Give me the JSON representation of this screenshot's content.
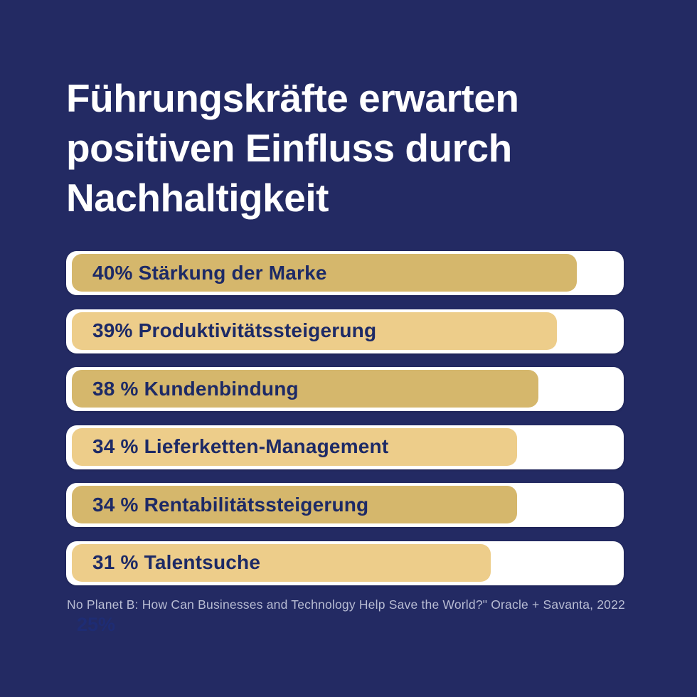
{
  "title": {
    "text": "Führungskräfte erwarten positiven Einfluss durch Nachhaltigkeit",
    "lines": [
      "Führungskräfte erwarten",
      "positiven Einfluss durch",
      "Nachhaltigkeit"
    ]
  },
  "chart_data": {
    "type": "bar",
    "orientation": "horizontal",
    "unit": "%",
    "title": "Führungskräfte erwarten positiven Einfluss durch Nachhaltigkeit",
    "categories": [
      "Stärkung der Marke",
      "Produktivitätssteigerung",
      "Kundenbindung",
      "Lieferketten-Management",
      "Rentabilitätssteigerung",
      "Talentsuche"
    ],
    "values": [
      40,
      39,
      38,
      34,
      34,
      31
    ],
    "rows": [
      {
        "label": "40% Stärkung der Marke",
        "value": 40,
        "fill_pct": 90.6,
        "shade": "dark"
      },
      {
        "label": "39% Produktivitätssteigerung",
        "value": 39,
        "fill_pct": 87.0,
        "shade": "light"
      },
      {
        "label": "38 % Kundenbindung",
        "value": 38,
        "fill_pct": 83.7,
        "shade": "dark"
      },
      {
        "label": "34 % Lieferketten-Management",
        "value": 34,
        "fill_pct": 79.8,
        "shade": "light"
      },
      {
        "label": "34 % Rentabilitätssteigerung",
        "value": 34,
        "fill_pct": 79.8,
        "shade": "dark"
      },
      {
        "label": "31 % Talentsuche",
        "value": 31,
        "fill_pct": 75.1,
        "shade": "light"
      }
    ],
    "source": "No Planet B: How Can Businesses and Technology Help Save the World?\" Oracle + Savanta, 2022",
    "legend": null,
    "grid": false
  },
  "footer": {
    "source_text": "No Planet B: How Can Businesses and Technology Help Save the World?\" Oracle + Savanta, 2022"
  },
  "watermark": {
    "text": "25%"
  },
  "colors": {
    "background": "#232a63",
    "bar_track": "#ffffff",
    "bar_fill_dark": "#d5b76c",
    "bar_fill_light": "#edcd8a",
    "label_text": "#1d2a66",
    "title_text": "#ffffff",
    "footer_text": "#b8bcd3",
    "watermark_text": "#1e2c74"
  }
}
